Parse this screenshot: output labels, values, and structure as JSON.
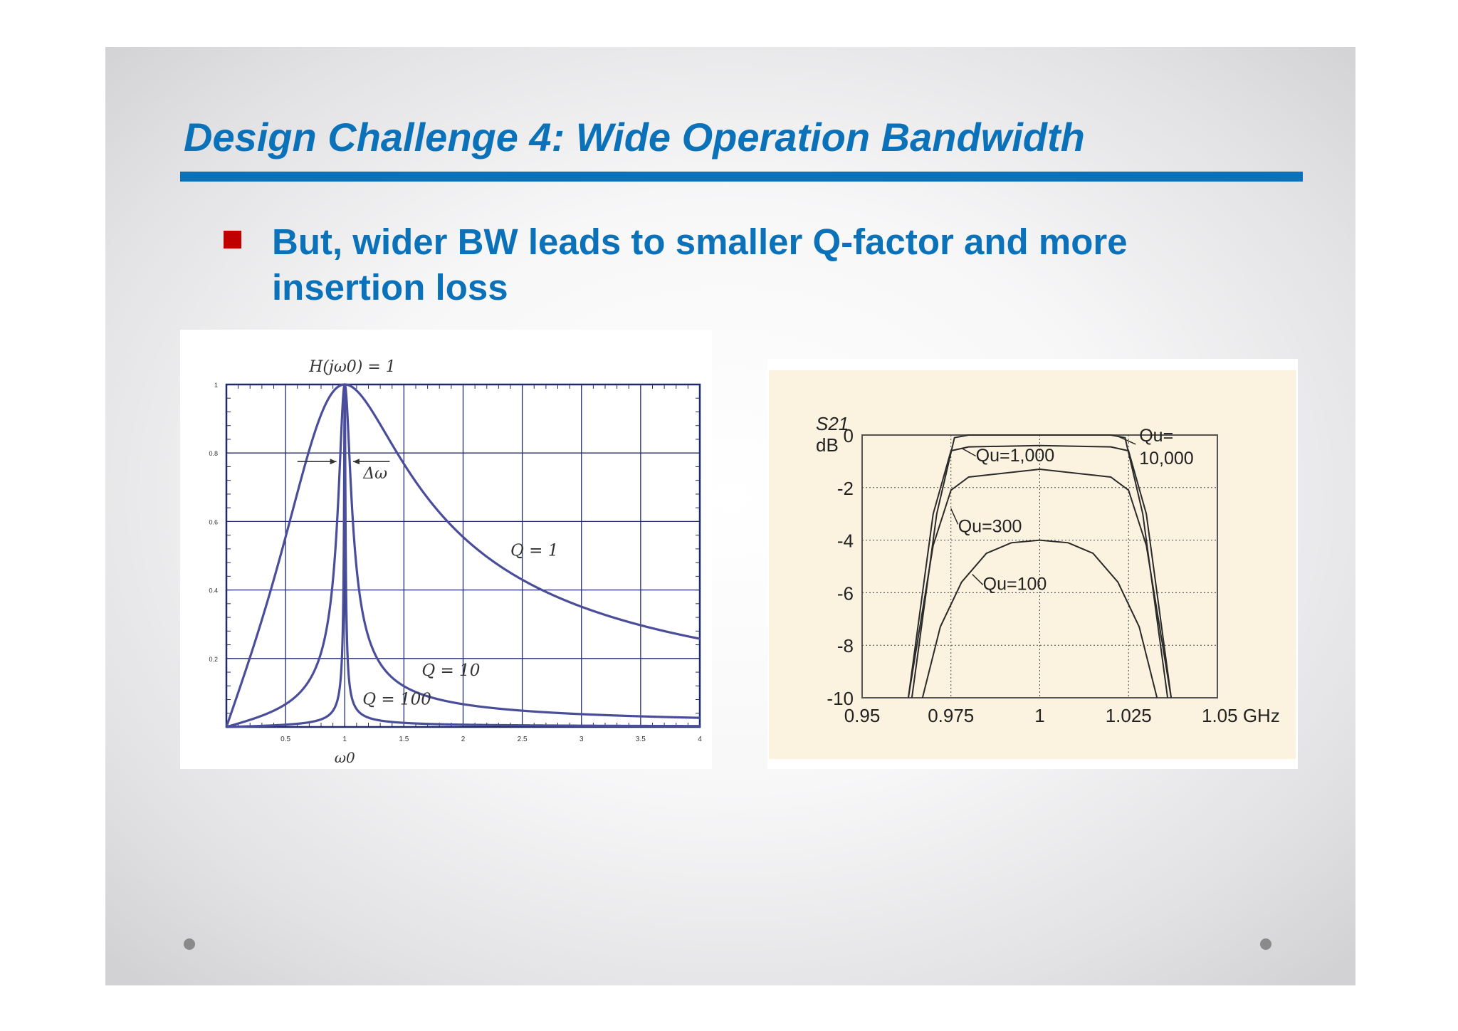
{
  "slide": {
    "title": "Design Challenge 4: Wide Operation Bandwidth",
    "bullet": "But, wider BW leads to smaller Q-factor and more insertion loss"
  },
  "colors": {
    "title_blue": "#0b72b9",
    "bullet_red": "#c00000",
    "curve_blue": "#4a4e9a",
    "grid_navy": "#1f2a6b",
    "chart2_bg": "#fbf3df"
  },
  "chart_data": [
    {
      "type": "line",
      "title": "",
      "xlabel": "ω0",
      "ylabel": "",
      "xlim": [
        0,
        4
      ],
      "ylim": [
        0,
        1
      ],
      "x_ticks": [
        0.5,
        1,
        1.5,
        2,
        2.5,
        3,
        3.5,
        4
      ],
      "x_tick_labels": [
        "0.5",
        "1",
        "1.5",
        "2",
        "2.5",
        "3",
        "3.5",
        "4"
      ],
      "y_ticks": [
        0.2,
        0.4,
        0.6,
        0.8,
        1
      ],
      "y_tick_labels": [
        "0.2",
        "0.4",
        "0.6",
        "0.8",
        "1"
      ],
      "grid": true,
      "annotations": [
        "H(jω0) = 1",
        "Δω"
      ],
      "series": [
        {
          "name": "Q = 1",
          "Q": 1
        },
        {
          "name": "Q = 10",
          "Q": 10
        },
        {
          "name": "Q = 100",
          "Q": 100
        }
      ]
    },
    {
      "type": "line",
      "title": "",
      "ylabel_lines": [
        "S21",
        "dB"
      ],
      "xlim": [
        0.95,
        1.05
      ],
      "ylim": [
        -10,
        0
      ],
      "x_tick_labels": [
        "0.95",
        "0.975",
        "1",
        "1.025",
        "1.05 GHz"
      ],
      "x_ticks": [
        0.95,
        0.975,
        1,
        1.025,
        1.05
      ],
      "y_ticks": [
        0,
        -2,
        -4,
        -6,
        -8,
        -10
      ],
      "y_tick_labels": [
        "0",
        "-2",
        "-4",
        "-6",
        "-8",
        "-10"
      ],
      "grid": true,
      "series": [
        {
          "name": "Qu= 10,000",
          "label_lines": [
            "Qu=",
            "10,000"
          ],
          "points": [
            [
              0.964,
              -10
            ],
            [
              0.971,
              -3
            ],
            [
              0.976,
              -0.1
            ],
            [
              0.98,
              0
            ],
            [
              1.02,
              0
            ],
            [
              1.024,
              -0.1
            ],
            [
              1.029,
              -3
            ],
            [
              1.036,
              -10
            ]
          ]
        },
        {
          "name": "Qu=1,000",
          "label_lines": [
            "Qu=1,000"
          ],
          "points": [
            [
              0.963,
              -10
            ],
            [
              0.97,
              -3
            ],
            [
              0.975,
              -0.6
            ],
            [
              0.98,
              -0.45
            ],
            [
              1,
              -0.4
            ],
            [
              1.02,
              -0.45
            ],
            [
              1.025,
              -0.6
            ],
            [
              1.03,
              -3
            ],
            [
              1.037,
              -10
            ]
          ]
        },
        {
          "name": "Qu=300",
          "label_lines": [
            "Qu=300"
          ],
          "points": [
            [
              0.963,
              -10
            ],
            [
              0.97,
              -4.2
            ],
            [
              0.975,
              -2.1
            ],
            [
              0.98,
              -1.6
            ],
            [
              1,
              -1.3
            ],
            [
              1.02,
              -1.6
            ],
            [
              1.025,
              -2.1
            ],
            [
              1.03,
              -4.2
            ],
            [
              1.037,
              -10
            ]
          ]
        },
        {
          "name": "Qu=100",
          "label_lines": [
            "Qu=100"
          ],
          "points": [
            [
              0.967,
              -10
            ],
            [
              0.972,
              -7.3
            ],
            [
              0.978,
              -5.6
            ],
            [
              0.985,
              -4.5
            ],
            [
              0.992,
              -4.1
            ],
            [
              1,
              -4
            ],
            [
              1.008,
              -4.1
            ],
            [
              1.015,
              -4.5
            ],
            [
              1.022,
              -5.6
            ],
            [
              1.028,
              -7.3
            ],
            [
              1.033,
              -10
            ]
          ]
        }
      ]
    }
  ]
}
